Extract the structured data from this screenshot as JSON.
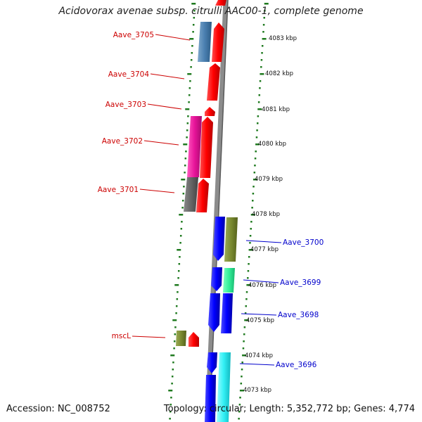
{
  "title": "Acidovorax avenae subsp. citrulli AAC00-1, complete genome",
  "footer": {
    "accession": "Accession: NC_008752",
    "topology": "Topology: circular; Length: 5,352,772 bp; Genes: 4,774"
  },
  "colors": {
    "backbone": "#8c8c8c",
    "ticks": "#1f7a1f",
    "left_labels": "#cc0000",
    "right_labels": "#0000cc"
  },
  "kbp_labels": [
    "4083 kbp",
    "4082 kbp",
    "4081 kbp",
    "4080 kbp",
    "4079 kbp",
    "4078 kbp",
    "4077 kbp",
    "4076 kbp",
    "4075 kbp",
    "4074 kbp",
    "4073 kbp"
  ],
  "gene_labels_left": [
    "Aave_3705",
    "Aave_3704",
    "Aave_3703",
    "Aave_3702",
    "Aave_3701",
    "mscL"
  ],
  "gene_labels_right": [
    "Aave_3700",
    "Aave_3699",
    "Aave_3698",
    "Aave_3696"
  ]
}
